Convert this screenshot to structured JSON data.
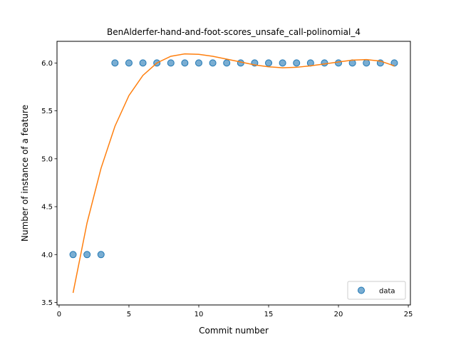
{
  "chart_data": {
    "type": "scatter",
    "title": "BenAlderfer-hand-and-foot-scores_unsafe_call-polinomial_4",
    "xlabel": "Commit number",
    "ylabel": "Number of instance of a feature",
    "xlim": [
      -0.15,
      25.15
    ],
    "ylim": [
      3.474,
      6.226
    ],
    "xticks": [
      0,
      5,
      10,
      15,
      20,
      25
    ],
    "yticks": [
      3.5,
      4.0,
      4.5,
      5.0,
      5.5,
      6.0
    ],
    "xtick_labels": [
      "0",
      "5",
      "10",
      "15",
      "20",
      "25"
    ],
    "ytick_labels": [
      "3.5",
      "4.0",
      "4.5",
      "5.0",
      "5.5",
      "6.0"
    ],
    "grid": false,
    "legend_position": "lower-right",
    "series": [
      {
        "name": "data",
        "kind": "scatter",
        "color": "#1f77b4",
        "x": [
          1,
          2,
          3,
          4,
          5,
          6,
          7,
          8,
          9,
          10,
          11,
          12,
          13,
          14,
          15,
          16,
          17,
          18,
          19,
          20,
          21,
          22,
          23,
          24
        ],
        "y": [
          4,
          4,
          4,
          6,
          6,
          6,
          6,
          6,
          6,
          6,
          6,
          6,
          6,
          6,
          6,
          6,
          6,
          6,
          6,
          6,
          6,
          6,
          6,
          6
        ]
      },
      {
        "kind": "line",
        "color": "#ff7f0e",
        "x": [
          1,
          2,
          3,
          4,
          5,
          6,
          7,
          8,
          9,
          10,
          11,
          12,
          13,
          14,
          15,
          16,
          17,
          18,
          19,
          20,
          21,
          22,
          23,
          24
        ],
        "y": [
          3.6,
          4.33,
          4.9,
          5.34,
          5.66,
          5.87,
          6.0,
          6.07,
          6.095,
          6.09,
          6.07,
          6.04,
          6.01,
          5.98,
          5.96,
          5.95,
          5.955,
          5.97,
          5.99,
          6.01,
          6.03,
          6.035,
          6.02,
          5.97
        ]
      }
    ]
  }
}
